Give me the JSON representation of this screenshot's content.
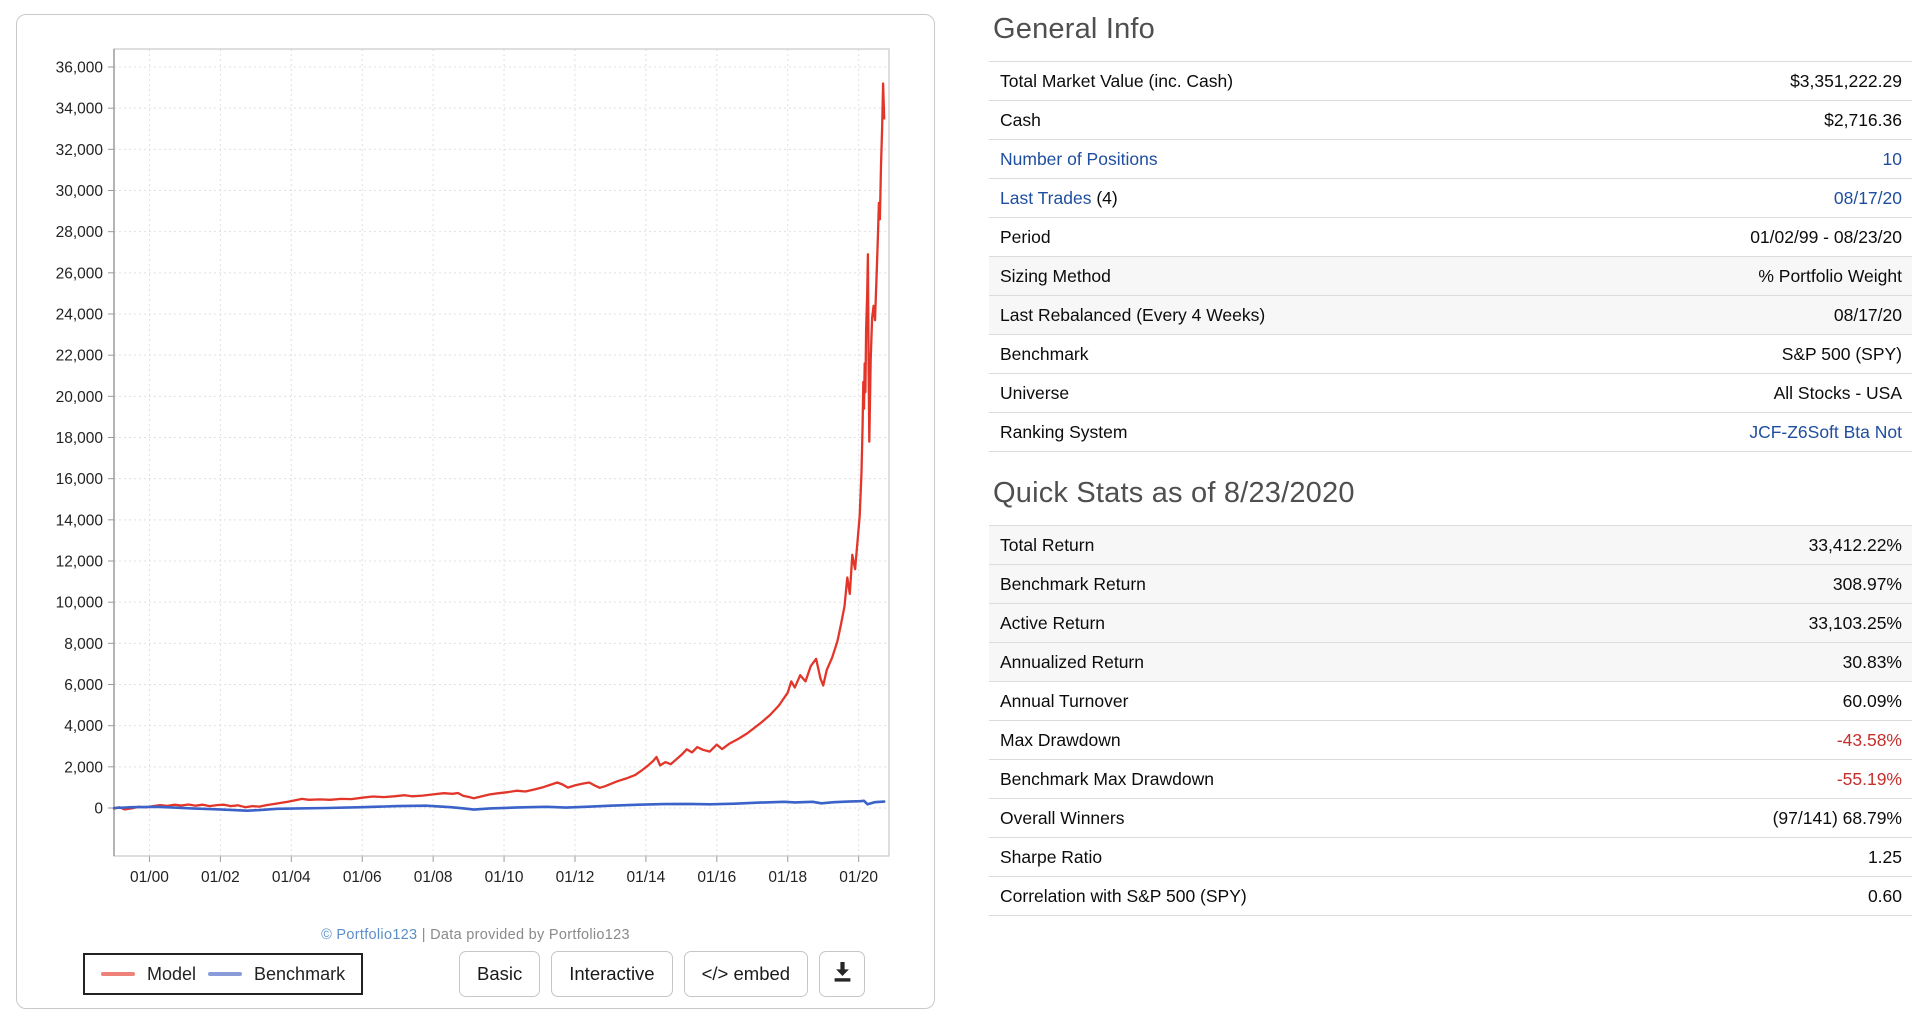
{
  "chart": {
    "attribution": {
      "brand": "© Portfolio123",
      "rest": " | Data provided by Portfolio123"
    },
    "legend": [
      {
        "label": "Model",
        "color": "#ee8179"
      },
      {
        "label": "Benchmark",
        "color": "#8a9bd9"
      }
    ],
    "buttons": {
      "basic": "Basic",
      "interactive": "Interactive",
      "embed": "</> embed"
    },
    "download_icon": "download-icon",
    "colors": {
      "model": "#e2362b",
      "benchmark": "#3a62c8",
      "grid": "#e0e0e0",
      "axis": "#9a9a9a",
      "border": "#c8c8c8",
      "tick_text": "#222222"
    }
  },
  "chart_data": {
    "type": "line",
    "title": "",
    "xlabel": "",
    "ylabel": "",
    "x_tick_labels": [
      "01/00",
      "01/02",
      "01/04",
      "01/06",
      "01/08",
      "01/10",
      "01/12",
      "01/14",
      "01/16",
      "01/18",
      "01/20"
    ],
    "x_tick_years": [
      2000,
      2002,
      2004,
      2006,
      2008,
      2010,
      2012,
      2014,
      2016,
      2018,
      2020
    ],
    "x_range_years": [
      1999.0,
      2020.85
    ],
    "y_ticks": [
      0,
      2000,
      4000,
      6000,
      8000,
      10000,
      12000,
      14000,
      16000,
      18000,
      20000,
      22000,
      24000,
      26000,
      28000,
      30000,
      32000,
      34000,
      36000
    ],
    "ylim": [
      -1500,
      37700
    ],
    "grid": "dashed",
    "legend_position": "bottom-left-box",
    "series": [
      {
        "name": "Model",
        "color": "#e2362b",
        "points": [
          [
            1999.0,
            -30
          ],
          [
            1999.15,
            40
          ],
          [
            1999.3,
            -70
          ],
          [
            1999.5,
            -20
          ],
          [
            1999.7,
            60
          ],
          [
            1999.9,
            30
          ],
          [
            2000.1,
            90
          ],
          [
            2000.3,
            140
          ],
          [
            2000.5,
            100
          ],
          [
            2000.7,
            160
          ],
          [
            2000.9,
            120
          ],
          [
            2001.1,
            170
          ],
          [
            2001.3,
            110
          ],
          [
            2001.5,
            160
          ],
          [
            2001.7,
            90
          ],
          [
            2001.9,
            140
          ],
          [
            2002.1,
            160
          ],
          [
            2002.3,
            90
          ],
          [
            2002.5,
            130
          ],
          [
            2002.7,
            40
          ],
          [
            2002.9,
            90
          ],
          [
            2003.1,
            70
          ],
          [
            2003.3,
            140
          ],
          [
            2003.6,
            220
          ],
          [
            2003.9,
            300
          ],
          [
            2004.1,
            370
          ],
          [
            2004.3,
            440
          ],
          [
            2004.5,
            400
          ],
          [
            2004.8,
            420
          ],
          [
            2005.1,
            400
          ],
          [
            2005.4,
            440
          ],
          [
            2005.7,
            430
          ],
          [
            2006.0,
            500
          ],
          [
            2006.3,
            560
          ],
          [
            2006.6,
            530
          ],
          [
            2006.9,
            570
          ],
          [
            2007.2,
            620
          ],
          [
            2007.4,
            570
          ],
          [
            2007.7,
            600
          ],
          [
            2008.0,
            660
          ],
          [
            2008.3,
            720
          ],
          [
            2008.55,
            690
          ],
          [
            2008.7,
            730
          ],
          [
            2008.85,
            590
          ],
          [
            2009.0,
            540
          ],
          [
            2009.15,
            470
          ],
          [
            2009.35,
            560
          ],
          [
            2009.6,
            660
          ],
          [
            2009.85,
            720
          ],
          [
            2010.1,
            770
          ],
          [
            2010.35,
            840
          ],
          [
            2010.6,
            800
          ],
          [
            2010.85,
            900
          ],
          [
            2011.1,
            1010
          ],
          [
            2011.3,
            1120
          ],
          [
            2011.5,
            1240
          ],
          [
            2011.65,
            1140
          ],
          [
            2011.8,
            990
          ],
          [
            2012.0,
            1100
          ],
          [
            2012.2,
            1180
          ],
          [
            2012.4,
            1240
          ],
          [
            2012.55,
            1100
          ],
          [
            2012.7,
            980
          ],
          [
            2012.85,
            1060
          ],
          [
            2013.0,
            1160
          ],
          [
            2013.2,
            1300
          ],
          [
            2013.45,
            1440
          ],
          [
            2013.7,
            1610
          ],
          [
            2013.9,
            1850
          ],
          [
            2014.05,
            2050
          ],
          [
            2014.2,
            2280
          ],
          [
            2014.3,
            2480
          ],
          [
            2014.4,
            2070
          ],
          [
            2014.55,
            2230
          ],
          [
            2014.7,
            2130
          ],
          [
            2014.85,
            2350
          ],
          [
            2015.0,
            2580
          ],
          [
            2015.15,
            2850
          ],
          [
            2015.3,
            2700
          ],
          [
            2015.45,
            2960
          ],
          [
            2015.6,
            2830
          ],
          [
            2015.8,
            2740
          ],
          [
            2016.0,
            3080
          ],
          [
            2016.15,
            2860
          ],
          [
            2016.35,
            3120
          ],
          [
            2016.6,
            3350
          ],
          [
            2016.85,
            3620
          ],
          [
            2017.05,
            3880
          ],
          [
            2017.25,
            4150
          ],
          [
            2017.5,
            4520
          ],
          [
            2017.75,
            4980
          ],
          [
            2018.0,
            5600
          ],
          [
            2018.1,
            6150
          ],
          [
            2018.2,
            5850
          ],
          [
            2018.35,
            6450
          ],
          [
            2018.5,
            6150
          ],
          [
            2018.65,
            6900
          ],
          [
            2018.8,
            7250
          ],
          [
            2018.92,
            6300
          ],
          [
            2019.0,
            5950
          ],
          [
            2019.1,
            6700
          ],
          [
            2019.25,
            7300
          ],
          [
            2019.4,
            8100
          ],
          [
            2019.5,
            8900
          ],
          [
            2019.6,
            9800
          ],
          [
            2019.68,
            11200
          ],
          [
            2019.75,
            10400
          ],
          [
            2019.82,
            12300
          ],
          [
            2019.9,
            11600
          ],
          [
            2019.97,
            13000
          ],
          [
            2020.03,
            14200
          ],
          [
            2020.08,
            16300
          ],
          [
            2020.11,
            18600
          ],
          [
            2020.13,
            20700
          ],
          [
            2020.15,
            19400
          ],
          [
            2020.17,
            21600
          ],
          [
            2020.19,
            20200
          ],
          [
            2020.21,
            23200
          ],
          [
            2020.24,
            25000
          ],
          [
            2020.26,
            26900
          ],
          [
            2020.28,
            21500
          ],
          [
            2020.3,
            17800
          ],
          [
            2020.34,
            21800
          ],
          [
            2020.38,
            23800
          ],
          [
            2020.42,
            24400
          ],
          [
            2020.46,
            23700
          ],
          [
            2020.5,
            25600
          ],
          [
            2020.54,
            27600
          ],
          [
            2020.57,
            29400
          ],
          [
            2020.6,
            28600
          ],
          [
            2020.63,
            31200
          ],
          [
            2020.66,
            33000
          ],
          [
            2020.69,
            35200
          ],
          [
            2020.72,
            33500
          ]
        ]
      },
      {
        "name": "Benchmark",
        "color": "#3a62c8",
        "points": [
          [
            1999.0,
            0
          ],
          [
            1999.5,
            40
          ],
          [
            2000.2,
            60
          ],
          [
            2000.7,
            20
          ],
          [
            2001.2,
            -20
          ],
          [
            2001.8,
            -60
          ],
          [
            2002.3,
            -90
          ],
          [
            2002.75,
            -130
          ],
          [
            2003.1,
            -100
          ],
          [
            2003.6,
            -40
          ],
          [
            2004.2,
            -20
          ],
          [
            2005.0,
            0
          ],
          [
            2006.0,
            40
          ],
          [
            2007.0,
            90
          ],
          [
            2007.8,
            110
          ],
          [
            2008.5,
            40
          ],
          [
            2008.9,
            -30
          ],
          [
            2009.15,
            -80
          ],
          [
            2009.6,
            -20
          ],
          [
            2010.3,
            20
          ],
          [
            2010.7,
            40
          ],
          [
            2011.2,
            60
          ],
          [
            2011.75,
            20
          ],
          [
            2012.3,
            60
          ],
          [
            2013.0,
            110
          ],
          [
            2013.8,
            160
          ],
          [
            2014.5,
            190
          ],
          [
            2015.2,
            200
          ],
          [
            2015.8,
            180
          ],
          [
            2016.5,
            210
          ],
          [
            2017.2,
            260
          ],
          [
            2017.9,
            300
          ],
          [
            2018.2,
            270
          ],
          [
            2018.7,
            300
          ],
          [
            2018.95,
            230
          ],
          [
            2019.3,
            280
          ],
          [
            2019.7,
            310
          ],
          [
            2020.05,
            330
          ],
          [
            2020.15,
            350
          ],
          [
            2020.25,
            180
          ],
          [
            2020.45,
            280
          ],
          [
            2020.72,
            310
          ]
        ]
      }
    ]
  },
  "general_info": {
    "title": "General Info",
    "rows": [
      {
        "label": "Total Market Value (inc. Cash)",
        "value": "$3,351,222.29"
      },
      {
        "label": "Cash",
        "value": "$2,716.36"
      },
      {
        "label": "Number of Positions",
        "label_link": true,
        "value": "10",
        "value_link": true
      },
      {
        "label": "Last Trades",
        "label_link": true,
        "label_suffix": " (4)",
        "value": "08/17/20",
        "value_link": true
      },
      {
        "label": "Period",
        "value": "01/02/99 - 08/23/20"
      },
      {
        "label": "Sizing Method",
        "value": "% Portfolio Weight",
        "shaded": true
      },
      {
        "label": "Last Rebalanced (Every 4 Weeks)",
        "value": "08/17/20",
        "shaded": true
      },
      {
        "label": "Benchmark",
        "value": "S&P 500 (SPY)"
      },
      {
        "label": "Universe",
        "value": "All Stocks - USA"
      },
      {
        "label": "Ranking System",
        "value": "JCF-Z6Soft Bta Not",
        "value_link": true
      }
    ]
  },
  "quick_stats": {
    "title": "Quick Stats as of 8/23/2020",
    "rows": [
      {
        "label": "Total Return",
        "value": "33,412.22%",
        "shaded": true
      },
      {
        "label": "Benchmark Return",
        "value": "308.97%",
        "shaded": true
      },
      {
        "label": "Active Return",
        "value": "33,103.25%",
        "shaded": true
      },
      {
        "label": "Annualized Return",
        "value": "30.83%",
        "shaded": true
      },
      {
        "label": "Annual Turnover",
        "value": "60.09%"
      },
      {
        "label": "Max Drawdown",
        "value": "-43.58%",
        "value_negative": true
      },
      {
        "label": "Benchmark Max Drawdown",
        "value": "-55.19%",
        "value_negative": true
      },
      {
        "label": "Overall Winners",
        "value": "(97/141) 68.79%"
      },
      {
        "label": "Sharpe Ratio",
        "value": "1.25"
      },
      {
        "label": "Correlation with S&P 500 (SPY)",
        "value": "0.60"
      }
    ]
  }
}
